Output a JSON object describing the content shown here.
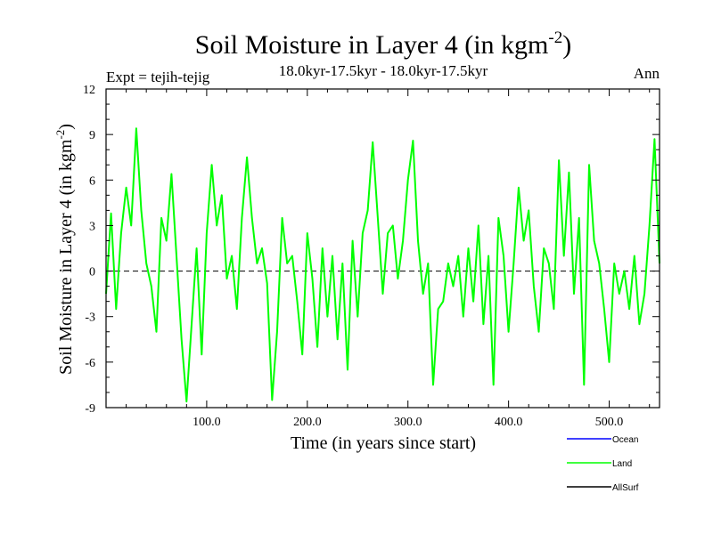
{
  "chart_data": {
    "type": "line",
    "title": "Soil Moisture in Layer 4 (in kgm",
    "title_sup": "-2",
    "title_close": ")",
    "subtitle": "18.0kyr-17.5kyr - 18.0kyr-17.5kyr",
    "expt_label": "Expt = tejih-tejig",
    "season_label": "Ann",
    "xlabel": "Time (in years since start)",
    "ylabel": "Soil Moisture in Layer 4 (in kgm",
    "ylabel_sup": "-2",
    "ylabel_close": ")",
    "xlim": [
      0,
      550
    ],
    "ylim": [
      -9,
      12
    ],
    "x_ticks": [
      100,
      200,
      300,
      400,
      500
    ],
    "x_tick_labels": [
      "100.0",
      "200.0",
      "300.0",
      "400.0",
      "500.0"
    ],
    "y_ticks": [
      -9,
      -6,
      -3,
      0,
      3,
      6,
      9,
      12
    ],
    "y_tick_labels": [
      "-9",
      "-6",
      "-3",
      "0",
      "3",
      "6",
      "9",
      "12"
    ],
    "zero_line": true,
    "legend": [
      {
        "name": "Ocean",
        "color": "#0000ff"
      },
      {
        "name": "Land",
        "color": "#00ff00"
      },
      {
        "name": "AllSurf",
        "color": "#000000"
      }
    ],
    "series": [
      {
        "name": "Land",
        "color": "#00ff00",
        "x": [
          0,
          5,
          10,
          15,
          20,
          25,
          30,
          35,
          40,
          45,
          50,
          55,
          60,
          65,
          70,
          75,
          80,
          85,
          90,
          95,
          100,
          105,
          110,
          115,
          120,
          125,
          130,
          135,
          140,
          145,
          150,
          155,
          160,
          165,
          170,
          175,
          180,
          185,
          190,
          195,
          200,
          205,
          210,
          215,
          220,
          225,
          230,
          235,
          240,
          245,
          250,
          255,
          260,
          265,
          270,
          275,
          280,
          285,
          290,
          295,
          300,
          305,
          310,
          315,
          320,
          325,
          330,
          335,
          340,
          345,
          350,
          355,
          360,
          365,
          370,
          375,
          380,
          385,
          390,
          395,
          400,
          405,
          410,
          415,
          420,
          425,
          430,
          435,
          440,
          445,
          450,
          455,
          460,
          465,
          470,
          475,
          480,
          485,
          490,
          495,
          500,
          505,
          510,
          515,
          520,
          525,
          530,
          535,
          540,
          545,
          550
        ],
        "values": [
          -1.5,
          3.8,
          -2.5,
          2.5,
          5.5,
          3.0,
          9.4,
          4.0,
          0.5,
          -1.0,
          -4.0,
          3.5,
          2.0,
          6.4,
          1.0,
          -4.5,
          -8.6,
          -3.5,
          1.5,
          -5.5,
          2.5,
          7.0,
          3.0,
          5.0,
          -0.5,
          1.0,
          -2.5,
          3.5,
          7.5,
          3.5,
          0.5,
          1.5,
          -0.8,
          -8.5,
          -4.0,
          3.5,
          0.5,
          1.0,
          -2.0,
          -5.5,
          2.5,
          -0.5,
          -5.0,
          1.5,
          -3.0,
          1.0,
          -4.5,
          0.5,
          -6.5,
          2.0,
          -3.0,
          2.5,
          4.0,
          8.5,
          3.5,
          -1.5,
          2.5,
          3.0,
          -0.5,
          2.0,
          6.0,
          8.6,
          2.0,
          -1.5,
          0.5,
          -7.5,
          -2.5,
          -2.0,
          0.5,
          -1.0,
          1.0,
          -3.0,
          1.5,
          -2.0,
          3.0,
          -3.5,
          1.0,
          -7.5,
          3.5,
          1.0,
          -4.0,
          0.5,
          5.5,
          2.0,
          4.0,
          -1.0,
          -4.0,
          1.5,
          0.5,
          -2.5,
          7.3,
          1.0,
          6.5,
          -1.5,
          3.5,
          -7.5,
          7.0,
          2.0,
          0.5,
          -2.5,
          -6.0,
          0.5,
          -1.5,
          0.0,
          -2.5,
          1.0,
          -3.5,
          -1.5,
          3.0,
          8.7,
          0.5
        ]
      }
    ]
  }
}
